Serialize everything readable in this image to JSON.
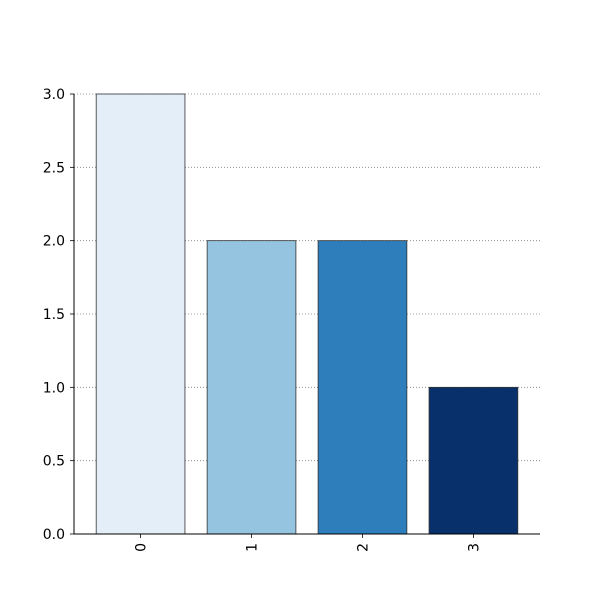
{
  "chart_data": {
    "type": "bar",
    "title": "",
    "xlabel": "",
    "ylabel": "",
    "categories": [
      "0",
      "1",
      "2",
      "3"
    ],
    "values": [
      3.0,
      2.0,
      2.0,
      1.0
    ],
    "ylim": [
      0,
      3.0
    ],
    "yticks": [
      "0.0",
      "0.5",
      "1.0",
      "1.5",
      "2.0",
      "2.5",
      "3.0"
    ],
    "ytick_values": [
      0,
      0.5,
      1.0,
      1.5,
      2.0,
      2.5,
      3.0
    ],
    "grid": {
      "y": true,
      "x": false,
      "style": "dotted"
    },
    "legend": "none",
    "x_tick_rotation": "vertical",
    "bar_colors": [
      "#e3eef9",
      "#94c4df",
      "#2e7ebc",
      "#08306b"
    ],
    "bar_edge_color": "#333333",
    "grid_color": "#808080"
  }
}
